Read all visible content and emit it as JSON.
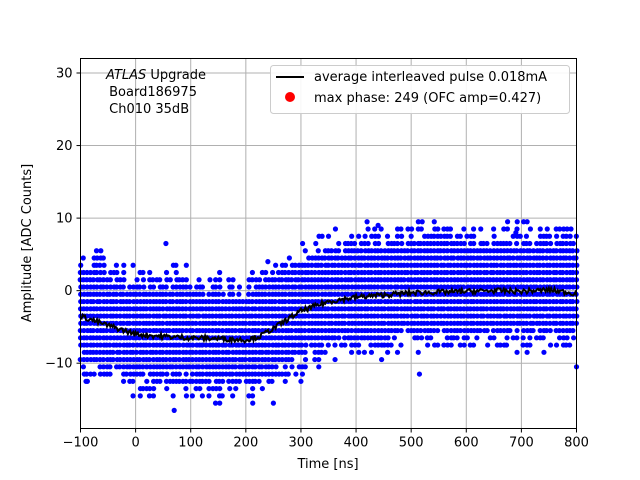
{
  "chart_data": {
    "type": "scatter",
    "title": "",
    "xlabel": "Time [ns]",
    "ylabel": "Amplitude [ADC Counts]",
    "xlim": [
      -100,
      800
    ],
    "ylim": [
      -19,
      32
    ],
    "xticks": [
      -100,
      0,
      100,
      200,
      300,
      400,
      500,
      600,
      700,
      800
    ],
    "yticks": [
      -10,
      0,
      10,
      20,
      30
    ],
    "grid": true,
    "legend_position": "top-right",
    "annotation": {
      "italic": "ATLAS",
      "line1_rest": " Upgrade",
      "line2": " Board186975",
      "line3": " Ch010 35dB"
    },
    "colors": {
      "samples": "#0000ff",
      "average": "#000000",
      "max_phase": "#ff0000",
      "grid": "#b0b0b0"
    },
    "series": [
      {
        "name": "average interleaved pulse 0.018mA",
        "kind": "line",
        "x": [
          -100,
          -50,
          0,
          50,
          100,
          150,
          200,
          225,
          250,
          300,
          350,
          400,
          450,
          500,
          550,
          600,
          650,
          700,
          750,
          800
        ],
        "y": [
          -3.5,
          -4.8,
          -6.0,
          -6.3,
          -6.5,
          -6.6,
          -6.8,
          -6.3,
          -5.2,
          -2.8,
          -1.5,
          -0.9,
          -0.6,
          -0.3,
          -0.2,
          -0.1,
          0.0,
          -0.1,
          0.1,
          -0.4
        ]
      },
      {
        "name": "max phase: 249 (OFC amp=0.427)",
        "kind": "marker",
        "x": [],
        "y": []
      },
      {
        "name": "samples",
        "kind": "scatter",
        "baseline_x": [
          -100,
          -50,
          0,
          50,
          100,
          150,
          200,
          225,
          250,
          300,
          350,
          400,
          450,
          500,
          550,
          600,
          650,
          700,
          750,
          800
        ],
        "baseline_y": [
          -3.5,
          -4.8,
          -6.0,
          -6.3,
          -6.5,
          -6.6,
          -6.8,
          -6.3,
          -5.2,
          -2.8,
          -1.5,
          -0.9,
          -0.6,
          -0.3,
          -0.2,
          -0.1,
          0.0,
          -0.1,
          0.1,
          -0.4
        ],
        "band_halfwidth": 7,
        "x_step": 6,
        "y_step": 1,
        "outliers": [
          {
            "x": -95,
            "y": 4.5
          },
          {
            "x": 55,
            "y": 6.5
          },
          {
            "x": 240,
            "y": 4.0
          },
          {
            "x": 420,
            "y": 9.5
          },
          {
            "x": 520,
            "y": 9.5
          },
          {
            "x": 790,
            "y": 8.5
          },
          {
            "x": 70,
            "y": -16.5
          },
          {
            "x": 250,
            "y": -15.5
          },
          {
            "x": -90,
            "y": -12.5
          },
          {
            "x": 515,
            "y": -11.5
          },
          {
            "x": 690,
            "y": 8.0
          },
          {
            "x": 440,
            "y": 9.0
          },
          {
            "x": 800,
            "y": -10.5
          },
          {
            "x": 20,
            "y": -13.5
          },
          {
            "x": 300,
            "y": -12.5
          }
        ]
      }
    ]
  }
}
